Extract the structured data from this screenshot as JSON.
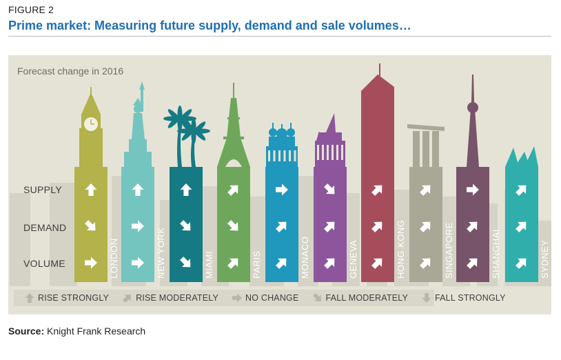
{
  "figure_label": "FIGURE 2",
  "title": "Prime market: Measuring future supply, demand and sale volumes…",
  "source": {
    "label": "Source:",
    "text": "Knight Frank Research"
  },
  "colors": {
    "title": "#1f6fb2",
    "panel": "#e5e3d6",
    "skyline": "#d5d3c6",
    "legend_arrow": "#b8b6ab",
    "London": "#b3b24b",
    "New York": "#74c4c0",
    "Miami": "#157a84",
    "Paris": "#6ea75b",
    "Monaco": "#2097bd",
    "Geneva": "#8c559c",
    "Hong Kong": "#a64d5b",
    "Singapore": "#a9a795",
    "Shanghai": "#775469",
    "Sydney": "#30aeab"
  },
  "chart_data": {
    "type": "table",
    "title": "Forecast change in 2016",
    "rows": [
      "SUPPLY",
      "DEMAND",
      "VOLUME"
    ],
    "legend": [
      {
        "code": "rise_strongly",
        "label": "RISE STRONGLY"
      },
      {
        "code": "rise_moderately",
        "label": "RISE MODERATELY"
      },
      {
        "code": "no_change",
        "label": "NO CHANGE"
      },
      {
        "code": "fall_moderately",
        "label": "FALL MODERATELY"
      },
      {
        "code": "fall_strongly",
        "label": "FALL STRONGLY"
      }
    ],
    "cities": [
      {
        "name": "LONDON",
        "key": "London",
        "landmark": "clock-tower-icon",
        "supply": "rise_strongly",
        "demand": "fall_moderately",
        "volume": "no_change"
      },
      {
        "name": "NEW YORK",
        "key": "New York",
        "landmark": "statue-of-liberty-icon",
        "supply": "rise_strongly",
        "demand": "no_change",
        "volume": "no_change"
      },
      {
        "name": "MIAMI",
        "key": "Miami",
        "landmark": "palm-tree-icon",
        "supply": "rise_strongly",
        "demand": "fall_moderately",
        "volume": "fall_moderately"
      },
      {
        "name": "PARIS",
        "key": "Paris",
        "landmark": "eiffel-tower-icon",
        "supply": "rise_moderately",
        "demand": "fall_moderately",
        "volume": "rise_moderately"
      },
      {
        "name": "MONACO",
        "key": "Monaco",
        "landmark": "casino-dome-icon",
        "supply": "no_change",
        "demand": "rise_moderately",
        "volume": "rise_moderately"
      },
      {
        "name": "GENEVA",
        "key": "Geneva",
        "landmark": "gothic-building-icon",
        "supply": "fall_moderately",
        "demand": "rise_moderately",
        "volume": "rise_moderately"
      },
      {
        "name": "HONG KONG",
        "key": "Hong Kong",
        "landmark": "skyscraper-icon",
        "supply": "rise_moderately",
        "demand": "rise_moderately",
        "volume": "rise_moderately"
      },
      {
        "name": "SINGAPORE",
        "key": "Singapore",
        "landmark": "marina-bay-icon",
        "supply": "rise_moderately",
        "demand": "rise_moderately",
        "volume": "rise_moderately"
      },
      {
        "name": "SHANGHAI",
        "key": "Shanghai",
        "landmark": "tv-tower-icon",
        "supply": "no_change",
        "demand": "rise_moderately",
        "volume": "rise_moderately"
      },
      {
        "name": "SYDNEY",
        "key": "Sydney",
        "landmark": "opera-house-icon",
        "supply": "rise_moderately",
        "demand": "rise_moderately",
        "volume": "rise_moderately"
      }
    ]
  }
}
